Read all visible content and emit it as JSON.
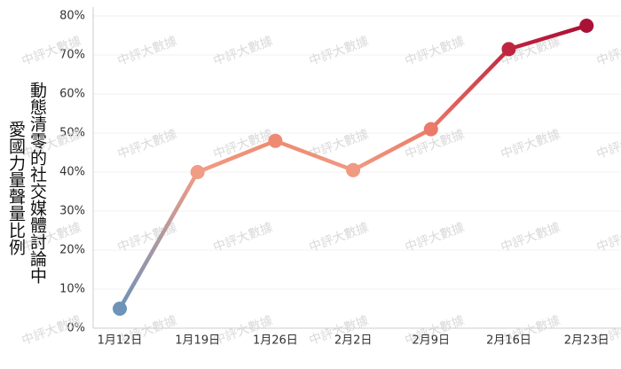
{
  "chart_data": {
    "type": "line",
    "y_label": [
      "動態清零的社交媒體討論中",
      "愛國力量聲量比例"
    ],
    "watermark": "中評大數據",
    "categories": [
      "1月12日",
      "1月19日",
      "1月26日",
      "2月2日",
      "2月9日",
      "2月16日",
      "2月23日"
    ],
    "values": [
      5,
      40,
      48,
      40.5,
      51,
      71.5,
      77.5
    ],
    "colors": [
      "#6d93b8",
      "#f19c85",
      "#ef8a72",
      "#f09a82",
      "#eb7a68",
      "#c0253f",
      "#aa1136"
    ],
    "ylim": [
      0,
      80
    ],
    "yticks": [
      {
        "value": 0,
        "label": "0%"
      },
      {
        "value": 10,
        "label": "10%"
      },
      {
        "value": 20,
        "label": "20%"
      },
      {
        "value": 30,
        "label": "30%"
      },
      {
        "value": 40,
        "label": "40%"
      },
      {
        "value": 50,
        "label": "50%"
      },
      {
        "value": 60,
        "label": "60%"
      },
      {
        "value": 70,
        "label": "70%"
      },
      {
        "value": 80,
        "label": "80%"
      }
    ],
    "grid": true
  }
}
